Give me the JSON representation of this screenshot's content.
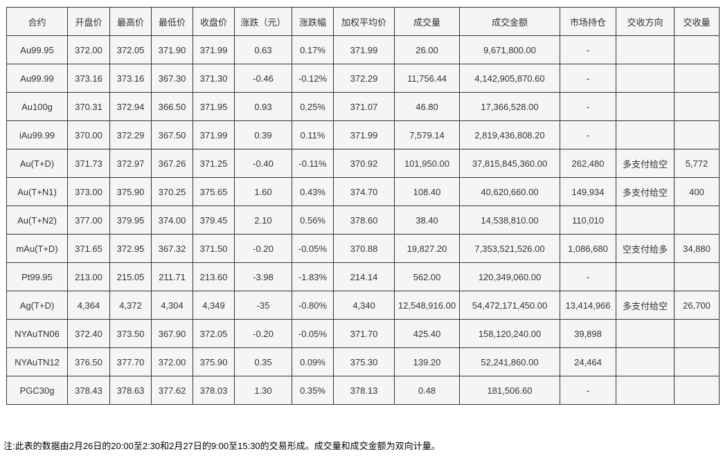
{
  "table": {
    "headers": [
      "合约",
      "开盘价",
      "最高价",
      "最低价",
      "收盘价",
      "涨跌（元）",
      "涨跌幅",
      "加权平均价",
      "成交量",
      "成交金额",
      "市场持仓",
      "交收方向",
      "交收量"
    ],
    "rows": [
      [
        "Au99.95",
        "372.00",
        "372.05",
        "371.90",
        "371.99",
        "0.63",
        "0.17%",
        "371.99",
        "26.00",
        "9,671,800.00",
        "-",
        "",
        ""
      ],
      [
        "Au99.99",
        "373.16",
        "373.16",
        "367.30",
        "371.30",
        "-0.46",
        "-0.12%",
        "372.29",
        "11,756.44",
        "4,142,905,870.60",
        "-",
        "",
        ""
      ],
      [
        "Au100g",
        "370.31",
        "372.94",
        "366.50",
        "371.95",
        "0.93",
        "0.25%",
        "371.07",
        "46.80",
        "17,366,528.00",
        "-",
        "",
        ""
      ],
      [
        "iAu99.99",
        "370.00",
        "372.29",
        "367.50",
        "371.99",
        "0.39",
        "0.11%",
        "371.99",
        "7,579.14",
        "2,819,436,808.20",
        "-",
        "",
        ""
      ],
      [
        "Au(T+D)",
        "371.73",
        "372.97",
        "367.26",
        "371.25",
        "-0.40",
        "-0.11%",
        "370.92",
        "101,950.00",
        "37,815,845,360.00",
        "262,480",
        "多支付给空",
        "5,772"
      ],
      [
        "Au(T+N1)",
        "373.00",
        "375.90",
        "370.25",
        "375.65",
        "1.60",
        "0.43%",
        "374.70",
        "108.40",
        "40,620,660.00",
        "149,934",
        "多支付给空",
        "400"
      ],
      [
        "Au(T+N2)",
        "377.00",
        "379.95",
        "374.00",
        "379.45",
        "2.10",
        "0.56%",
        "378.60",
        "38.40",
        "14,538,810.00",
        "110,010",
        "",
        ""
      ],
      [
        "mAu(T+D)",
        "371.65",
        "372.95",
        "367.32",
        "371.50",
        "-0.20",
        "-0.05%",
        "370.88",
        "19,827.20",
        "7,353,521,526.00",
        "1,086,680",
        "空支付给多",
        "34,880"
      ],
      [
        "Pt99.95",
        "213.00",
        "215.05",
        "211.71",
        "213.60",
        "-3.98",
        "-1.83%",
        "214.14",
        "562.00",
        "120,349,060.00",
        "-",
        "",
        ""
      ],
      [
        "Ag(T+D)",
        "4,364",
        "4,372",
        "4,304",
        "4,349",
        "-35",
        "-0.80%",
        "4,340",
        "12,548,916.00",
        "54,472,171,450.00",
        "13,414,966",
        "多支付给空",
        "26,700"
      ],
      [
        "NYAuTN06",
        "372.40",
        "373.50",
        "367.90",
        "372.05",
        "-0.20",
        "-0.05%",
        "371.70",
        "425.40",
        "158,120,240.00",
        "39,898",
        "",
        ""
      ],
      [
        "NYAuTN12",
        "376.50",
        "377.70",
        "372.00",
        "375.90",
        "0.35",
        "0.09%",
        "375.30",
        "139.20",
        "52,241,860.00",
        "24,464",
        "",
        ""
      ],
      [
        "PGC30g",
        "378.43",
        "378.63",
        "377.62",
        "378.03",
        "1.30",
        "0.35%",
        "378.13",
        "0.48",
        "181,506.60",
        "-",
        "",
        ""
      ]
    ]
  },
  "footnote": "注:此表的数据由2月26日的20:00至2:30和2月27日的9:00至15:30的交易形成。成交量和成交金额为双向计量。",
  "colors": {
    "cell_background": "#f5f5f5",
    "border": "#333333",
    "text": "#333333",
    "page_background": "#ffffff"
  }
}
